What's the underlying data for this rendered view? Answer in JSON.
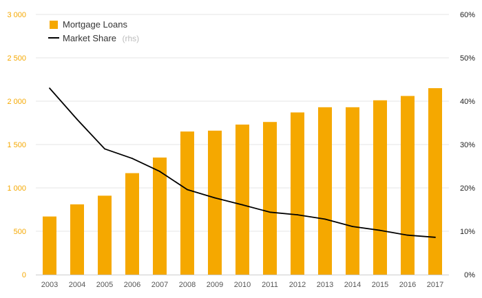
{
  "chart_data": {
    "type": "bar",
    "categories": [
      "2003",
      "2004",
      "2005",
      "2006",
      "2007",
      "2008",
      "2009",
      "2010",
      "2011",
      "2012",
      "2013",
      "2014",
      "2015",
      "2016",
      "2017"
    ],
    "series": [
      {
        "name": "Mortgage Loans",
        "type": "bar",
        "axis": "left",
        "color": "#f5a800",
        "values": [
          670,
          810,
          910,
          1170,
          1350,
          1650,
          1660,
          1730,
          1760,
          1870,
          1930,
          1930,
          2010,
          2060,
          2150
        ]
      },
      {
        "name": "Market Share",
        "type": "line",
        "axis": "right",
        "color": "#000000",
        "values": [
          43.0,
          35.8,
          29.0,
          26.8,
          23.8,
          19.6,
          17.7,
          16.1,
          14.4,
          13.8,
          12.8,
          11.1,
          10.2,
          9.1,
          8.6
        ]
      }
    ],
    "yleft": {
      "ylim": [
        0,
        3000
      ],
      "ticks": [
        "0",
        "500",
        "1 000",
        "1 500",
        "2 000",
        "2 500",
        "3 000"
      ],
      "color": "#f5a800"
    },
    "yright": {
      "ylim": [
        0,
        60
      ],
      "ticks": [
        "0%",
        "10%",
        "20%",
        "30%",
        "40%",
        "50%",
        "60%"
      ],
      "color": "#222222"
    },
    "grid": true,
    "legend": {
      "placement": "top-left",
      "entries": [
        {
          "label": "Mortgage Loans",
          "suffix": ""
        },
        {
          "label": "Market Share",
          "suffix": "(rhs)"
        }
      ]
    }
  }
}
